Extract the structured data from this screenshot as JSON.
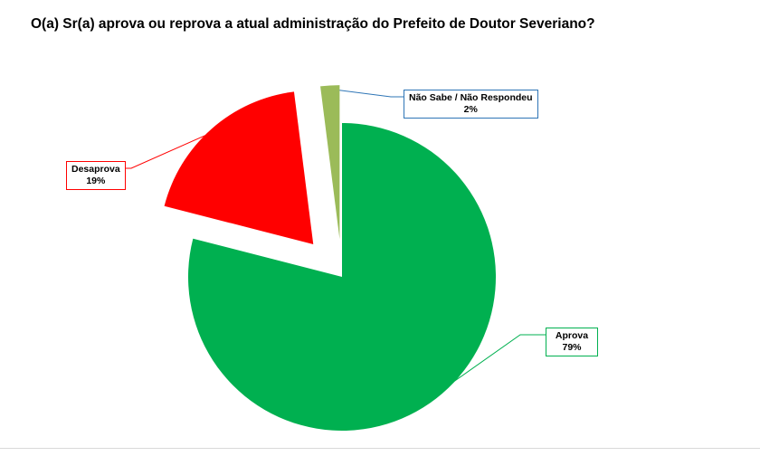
{
  "chart_data": {
    "type": "pie",
    "title": "O(a) Sr(a) aprova ou reprova a atual administração do Prefeito de Doutor Severiano?",
    "slices": [
      {
        "label": "Aprova",
        "value": 79,
        "value_label": "79%",
        "color": "#00b050",
        "label_border": "#00b050"
      },
      {
        "label": "Desaprova",
        "value": 19,
        "value_label": "19%",
        "color": "#ff0000",
        "label_border": "#ff0000"
      },
      {
        "label": "Não Sabe / Não Respondeu",
        "value": 2,
        "value_label": "2%",
        "color": "#9bbb59",
        "label_border": "#2e75b6"
      }
    ],
    "exploded": true,
    "legend": "none"
  }
}
